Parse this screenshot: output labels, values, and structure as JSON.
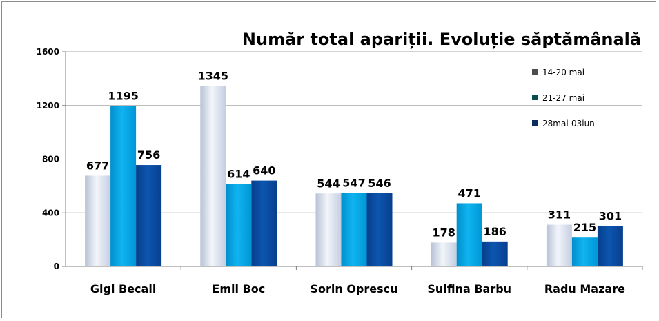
{
  "chart_data": {
    "type": "bar",
    "title": "Număr total apariții. Evoluție săptămânală",
    "categories": [
      "Gigi Becali",
      "Emil Boc",
      "Sorin Oprescu",
      "Sulfina Barbu",
      "Radu Mazare"
    ],
    "series": [
      {
        "name": "14-20 mai",
        "values": [
          677,
          1345,
          544,
          178,
          311
        ],
        "color": "#cdd6e6",
        "legend_color": "#4d4d4d"
      },
      {
        "name": "21-27 mai",
        "values": [
          1195,
          614,
          547,
          471,
          215
        ],
        "color": "#00a6e6",
        "legend_color": "#0a4d4d"
      },
      {
        "name": "28mai-03iun",
        "values": [
          756,
          640,
          546,
          186,
          301
        ],
        "color": "#0a4ea6",
        "legend_color": "#0a2d5c"
      }
    ],
    "yticks": [
      0,
      400,
      800,
      1200,
      1600
    ],
    "ylim": [
      0,
      1600
    ],
    "grid": true,
    "legend_position": "top-right"
  }
}
